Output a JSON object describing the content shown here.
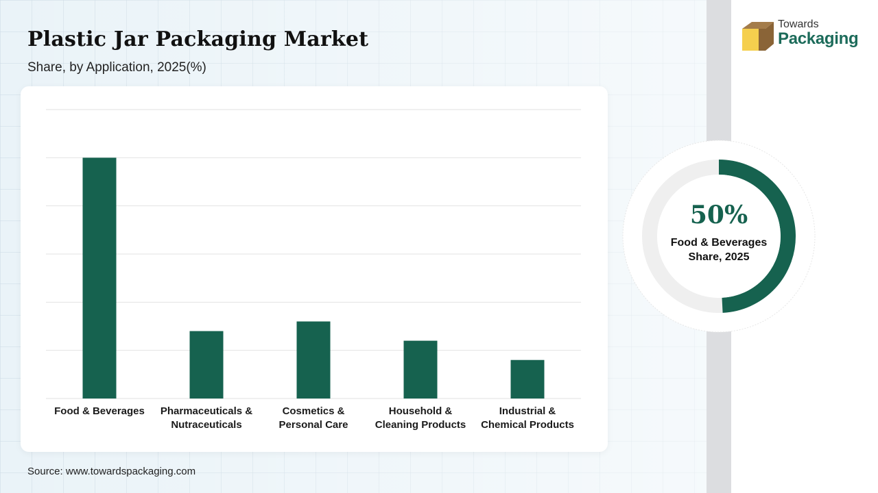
{
  "header": {
    "title": "Plastic Jar Packaging Market",
    "subtitle": "Share, by Application, 2025(%)"
  },
  "source": "Source: www.towardspackaging.com",
  "logo": {
    "line1": "Towards",
    "line2": "Packaging",
    "icon": "box-icon"
  },
  "highlight": {
    "value": "50%",
    "label_line1": "Food & Beverages",
    "label_line2": "Share, 2025",
    "fraction": 0.5
  },
  "colors": {
    "bar": "#16624f",
    "donut_fill": "#16624f",
    "donut_track": "#efefef",
    "logo_green": "#1c6b5a",
    "logo_yellow": "#f5cf4e",
    "logo_brown": "#a47c4a"
  },
  "chart_data": {
    "type": "bar",
    "title": "Plastic Jar Packaging Market",
    "subtitle": "Share, by Application, 2025(%)",
    "categories": [
      [
        "Food & Beverages"
      ],
      [
        "Pharmaceuticals &",
        "Nutraceuticals"
      ],
      [
        "Cosmetics &",
        "Personal Care"
      ],
      [
        "Household &",
        "Cleaning Products"
      ],
      [
        "Industrial &",
        "Chemical Products"
      ]
    ],
    "values": [
      50,
      14,
      16,
      12,
      8
    ],
    "ylim": [
      0,
      60
    ],
    "gridlines": [
      0,
      10,
      20,
      30,
      40,
      50,
      60
    ],
    "grid": true,
    "xlabel": "",
    "ylabel": ""
  }
}
